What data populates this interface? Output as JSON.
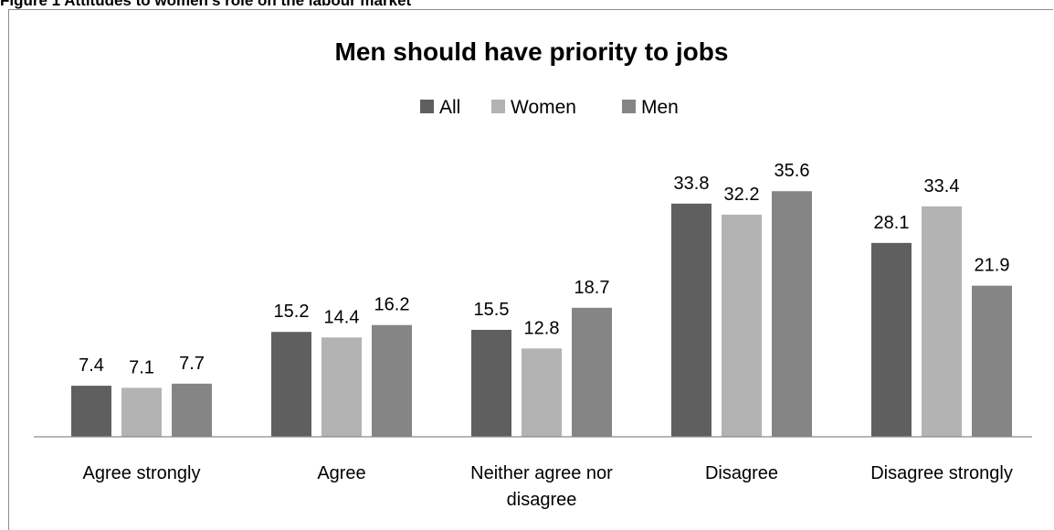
{
  "caption": "Figure 1 Attitudes to women's role on the labour market",
  "chart_data": {
    "type": "bar",
    "title": "Men should have priority to jobs",
    "xlabel": "",
    "ylabel": "",
    "ylim": [
      0,
      40
    ],
    "grid": false,
    "legend_position": "top",
    "categories": [
      [
        "Agree strongly"
      ],
      [
        "Agree"
      ],
      [
        "Neither agree nor",
        "disagree"
      ],
      [
        "Disagree"
      ],
      [
        "Disagree strongly"
      ]
    ],
    "series": [
      {
        "name": "All",
        "color": "#5f5f5f",
        "values": [
          7.4,
          15.2,
          15.5,
          33.8,
          28.1
        ]
      },
      {
        "name": "Women",
        "color": "#b3b3b3",
        "values": [
          7.1,
          14.4,
          12.8,
          32.2,
          33.4
        ]
      },
      {
        "name": "Men",
        "color": "#858585",
        "values": [
          7.7,
          16.2,
          18.7,
          35.6,
          21.9
        ]
      }
    ]
  }
}
